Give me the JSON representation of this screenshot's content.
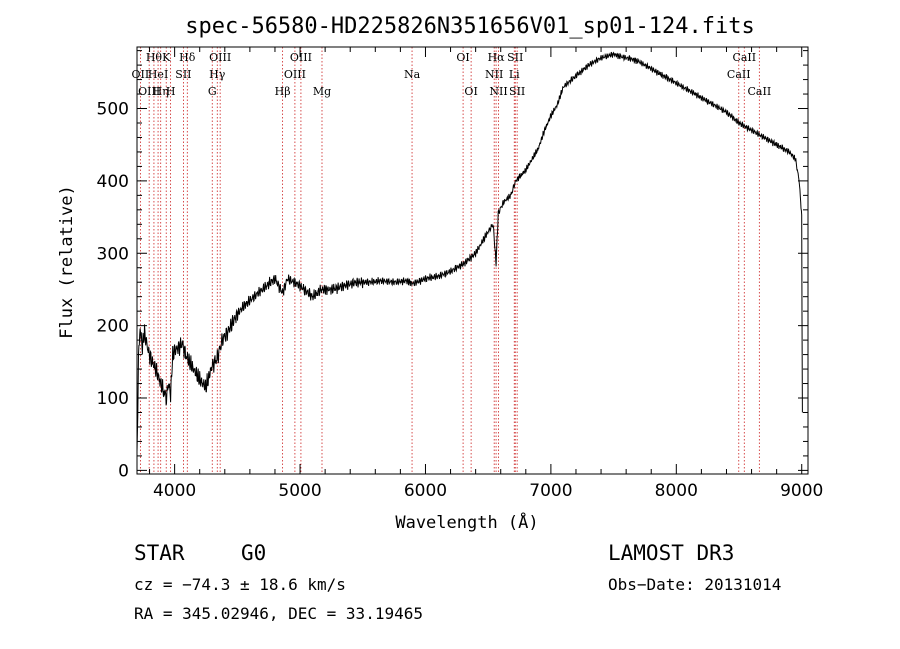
{
  "chart_data": {
    "type": "line",
    "title": "spec-56580-HD225826N351656V01_sp01-124.fits",
    "xlabel": "Wavelength (Å)",
    "ylabel": "Flux (relative)",
    "xlim": [
      3700,
      9050
    ],
    "ylim": [
      -5,
      585
    ],
    "xticks": [
      4000,
      5000,
      6000,
      7000,
      8000,
      9000
    ],
    "yticks": [
      0,
      100,
      200,
      300,
      400,
      500
    ],
    "grid": false,
    "line_color": "#000000",
    "marker_color": "#cc2222",
    "spectrum": {
      "x": [
        3700,
        3712,
        3725,
        3740,
        3760,
        3790,
        3820,
        3850,
        3880,
        3910,
        3935,
        3950,
        3968,
        3985,
        4000,
        4030,
        4060,
        4100,
        4150,
        4200,
        4250,
        4300,
        4340,
        4380,
        4420,
        4480,
        4540,
        4600,
        4700,
        4800,
        4861,
        4900,
        5000,
        5100,
        5173,
        5250,
        5350,
        5450,
        5550,
        5650,
        5750,
        5850,
        5900,
        6000,
        6100,
        6200,
        6300,
        6400,
        6450,
        6500,
        6540,
        6563,
        6580,
        6620,
        6680,
        6720,
        6800,
        6850,
        6900,
        6950,
        7000,
        7050,
        7100,
        7200,
        7300,
        7400,
        7500,
        7550,
        7650,
        7700,
        7800,
        7900,
        8000,
        8100,
        8200,
        8300,
        8400,
        8500,
        8600,
        8700,
        8800,
        8900,
        8950,
        8980,
        9000,
        9005
      ],
      "y": [
        20,
        150,
        200,
        170,
        190,
        165,
        150,
        140,
        125,
        110,
        100,
        120,
        105,
        160,
        165,
        170,
        175,
        155,
        140,
        125,
        115,
        145,
        155,
        180,
        190,
        210,
        225,
        235,
        250,
        265,
        245,
        265,
        255,
        240,
        250,
        250,
        255,
        260,
        260,
        262,
        260,
        262,
        258,
        265,
        268,
        275,
        285,
        300,
        315,
        330,
        340,
        285,
        355,
        370,
        380,
        400,
        415,
        430,
        445,
        470,
        490,
        505,
        530,
        545,
        560,
        570,
        575,
        572,
        568,
        565,
        555,
        545,
        535,
        525,
        515,
        505,
        495,
        480,
        470,
        460,
        450,
        440,
        430,
        400,
        350,
        80
      ]
    },
    "lines": [
      {
        "wl": 3727,
        "label": "OII",
        "row": 2
      },
      {
        "wl": 3797,
        "label": "OIII",
        "row": 3
      },
      {
        "wl": 3835,
        "label": "Hθ",
        "row": 1
      },
      {
        "wl": 3868,
        "label": "HeI",
        "row": 2
      },
      {
        "wl": 3889,
        "label": "Hη",
        "row": 3
      },
      {
        "wl": 3933,
        "label": "K",
        "row": 1
      },
      {
        "wl": 3968,
        "label": "H",
        "row": 3
      },
      {
        "wl": 4070,
        "label": "SII",
        "row": 2
      },
      {
        "wl": 4101,
        "label": "Hδ",
        "row": 1
      },
      {
        "wl": 4300,
        "label": "G",
        "row": 3
      },
      {
        "wl": 4340,
        "label": "Hγ",
        "row": 2
      },
      {
        "wl": 4363,
        "label": "OIII",
        "row": 1
      },
      {
        "wl": 4861,
        "label": "Hβ",
        "row": 3
      },
      {
        "wl": 4959,
        "label": "OIII",
        "row": 2
      },
      {
        "wl": 5007,
        "label": "OIII",
        "row": 1
      },
      {
        "wl": 5175,
        "label": "Mg",
        "row": 3
      },
      {
        "wl": 5893,
        "label": "Na",
        "row": 2
      },
      {
        "wl": 6300,
        "label": "OI",
        "row": 1
      },
      {
        "wl": 6364,
        "label": "OI",
        "row": 3
      },
      {
        "wl": 6548,
        "label": "NII",
        "row": 2
      },
      {
        "wl": 6563,
        "label": "Hα",
        "row": 1
      },
      {
        "wl": 6583,
        "label": "NII",
        "row": 3
      },
      {
        "wl": 6708,
        "label": "Li",
        "row": 2
      },
      {
        "wl": 6716,
        "label": "SII",
        "row": 1
      },
      {
        "wl": 6731,
        "label": "SII",
        "row": 3
      },
      {
        "wl": 8498,
        "label": "CaII",
        "row": 2
      },
      {
        "wl": 8542,
        "label": "CaII",
        "row": 1
      },
      {
        "wl": 8662,
        "label": "CaII",
        "row": 3
      }
    ]
  },
  "info": {
    "class": "STAR",
    "subclass": "G0",
    "survey": "LAMOST DR3",
    "cz": "cz = −74.3 ± 18.6 km/s",
    "obs_date": "Obs−Date: 20131014",
    "coords": "RA = 345.02946, DEC =  33.19465"
  }
}
